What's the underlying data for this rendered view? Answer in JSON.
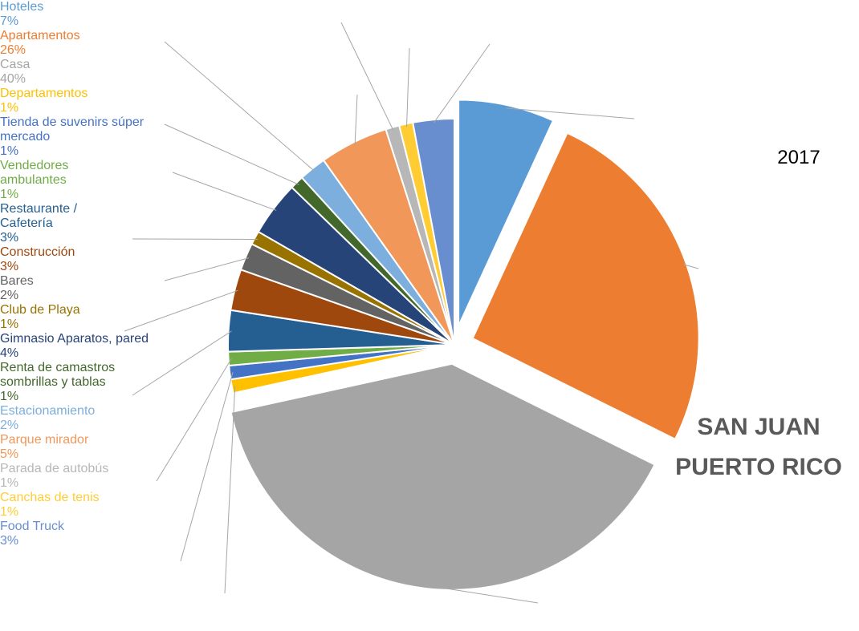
{
  "chart_data": {
    "type": "pie",
    "annotations": [
      "2017",
      "SAN JUAN PUERTO RICO"
    ],
    "categories": [
      "Hoteles",
      "Apartamentos",
      "Casa",
      "Departamentos",
      "Tienda de suvenirs súper mercado",
      "Vendedores ambulantes",
      "Restaurante / Cafetería",
      "Construcción",
      "Bares",
      "Club de Playa",
      "Gimnasio Aparatos, pared",
      "Renta de camastros sombrillas y tablas",
      "Estacionamiento",
      "Parque mirador",
      "Parada de autobús",
      "Canchas de tenis",
      "Food Truck"
    ],
    "values": [
      7,
      26,
      40,
      1,
      1,
      1,
      3,
      3,
      2,
      1,
      4,
      1,
      2,
      5,
      1,
      1,
      3
    ],
    "value_labels": [
      "7%",
      "26%",
      "40%",
      "1%",
      "1%",
      "1%",
      "3%",
      "3%",
      "2%",
      "1%",
      "4%",
      "1%",
      "2%",
      "5%",
      "1%",
      "1%",
      "3%"
    ],
    "colors": [
      "#5b9bd5",
      "#ed7d31",
      "#a5a5a5",
      "#ffc000",
      "#4472c4",
      "#70ad47",
      "#255e91",
      "#9e480e",
      "#636363",
      "#997300",
      "#264478",
      "#43682b",
      "#7cafdd",
      "#f1975a",
      "#b7b7b7",
      "#ffcd33",
      "#698ed0"
    ],
    "exploded": [
      0,
      1,
      2
    ]
  }
}
